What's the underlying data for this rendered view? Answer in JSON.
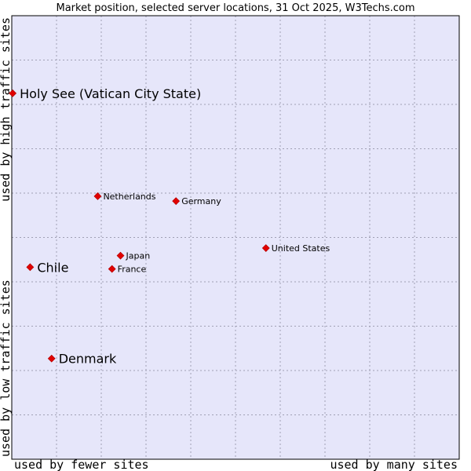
{
  "chart_data": {
    "type": "scatter",
    "title": "Market position, selected server locations, 31 Oct 2025, W3Techs.com",
    "xlabel_left": "used by fewer sites",
    "xlabel_right": "used by many sites",
    "ylabel_top": "used by high traffic sites",
    "ylabel_bottom": "used by low traffic sites",
    "xlim": [
      0,
      100
    ],
    "ylim": [
      0,
      100
    ],
    "grid": true,
    "colors": {
      "plot_background": "#e6e6fa",
      "grid": "#a0a0b4",
      "axis": "#000000",
      "marker": "#e00000"
    },
    "points": [
      {
        "name": "Holy See (Vatican City State)",
        "x": 0.2,
        "y": 82.5,
        "emphasis": true
      },
      {
        "name": "Netherlands",
        "x": 19.2,
        "y": 59.3,
        "emphasis": false
      },
      {
        "name": "Germany",
        "x": 36.7,
        "y": 58.2,
        "emphasis": false
      },
      {
        "name": "United States",
        "x": 56.8,
        "y": 47.6,
        "emphasis": false
      },
      {
        "name": "Japan",
        "x": 24.3,
        "y": 45.9,
        "emphasis": false
      },
      {
        "name": "France",
        "x": 22.4,
        "y": 42.9,
        "emphasis": false
      },
      {
        "name": "Chile",
        "x": 4.1,
        "y": 43.3,
        "emphasis": true
      },
      {
        "name": "Denmark",
        "x": 8.9,
        "y": 22.7,
        "emphasis": true
      }
    ]
  }
}
